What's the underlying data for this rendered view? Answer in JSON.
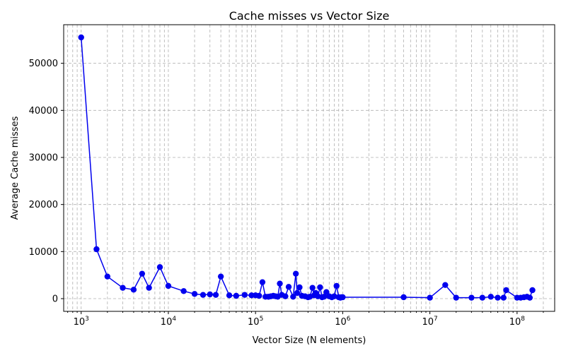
{
  "chart_data": {
    "type": "line",
    "title": "Cache misses vs Vector Size",
    "xlabel": "Vector Size (N elements)",
    "ylabel": "Average Cache misses",
    "xscale": "log",
    "xlim": [
      630,
      270000000
    ],
    "ylim": [
      -2700,
      58200
    ],
    "grid": "on (major and minor, dashed)",
    "marker": "circle",
    "color": "#0000ee",
    "xticks": [
      {
        "base": "10",
        "exp": "3",
        "value": 1000
      },
      {
        "base": "10",
        "exp": "4",
        "value": 10000
      },
      {
        "base": "10",
        "exp": "5",
        "value": 100000
      },
      {
        "base": "10",
        "exp": "6",
        "value": 1000000
      },
      {
        "base": "10",
        "exp": "7",
        "value": 10000000
      },
      {
        "base": "10",
        "exp": "8",
        "value": 100000000
      }
    ],
    "yticks": [
      {
        "label": "0",
        "value": 0
      },
      {
        "label": "10000",
        "value": 10000
      },
      {
        "label": "20000",
        "value": 20000
      },
      {
        "label": "30000",
        "value": 30000
      },
      {
        "label": "40000",
        "value": 40000
      },
      {
        "label": "50000",
        "value": 50000
      }
    ],
    "series": [
      {
        "x": [
          1000,
          1500,
          2000,
          3000,
          4000,
          5000,
          6000,
          8000,
          10000,
          15000,
          20000,
          25000,
          30000,
          35000,
          40000,
          50000,
          60000,
          75000,
          90000,
          100000,
          110000,
          120000,
          130000,
          140000,
          150000,
          160000,
          170000,
          180000,
          190000,
          200000,
          220000,
          240000,
          270000,
          290000,
          300000,
          320000,
          340000,
          370000,
          400000,
          420000,
          450000,
          470000,
          490000,
          520000,
          550000,
          580000,
          610000,
          650000,
          700000,
          750000,
          800000,
          850000,
          900000,
          940000,
          970000,
          1000000,
          5000000,
          10000000,
          15000000,
          20000000,
          30000000,
          40000000,
          50000000,
          60000000,
          70000000,
          75000000,
          100000000,
          110000000,
          120000000,
          130000000,
          140000000,
          150000000
        ],
        "y": [
          55500,
          10500,
          4700,
          2300,
          1900,
          5300,
          2300,
          6700,
          2700,
          1600,
          1000,
          800,
          900,
          800,
          4700,
          700,
          600,
          800,
          700,
          700,
          600,
          3500,
          400,
          400,
          500,
          600,
          500,
          400,
          3200,
          800,
          500,
          2500,
          400,
          5300,
          1200,
          2400,
          600,
          500,
          300,
          400,
          2300,
          700,
          1200,
          500,
          2400,
          300,
          400,
          1400,
          500,
          300,
          500,
          2700,
          300,
          200,
          300,
          300,
          300,
          200,
          2900,
          200,
          200,
          200,
          400,
          200,
          200,
          1800,
          200,
          200,
          300,
          400,
          200,
          1800
        ]
      }
    ]
  }
}
